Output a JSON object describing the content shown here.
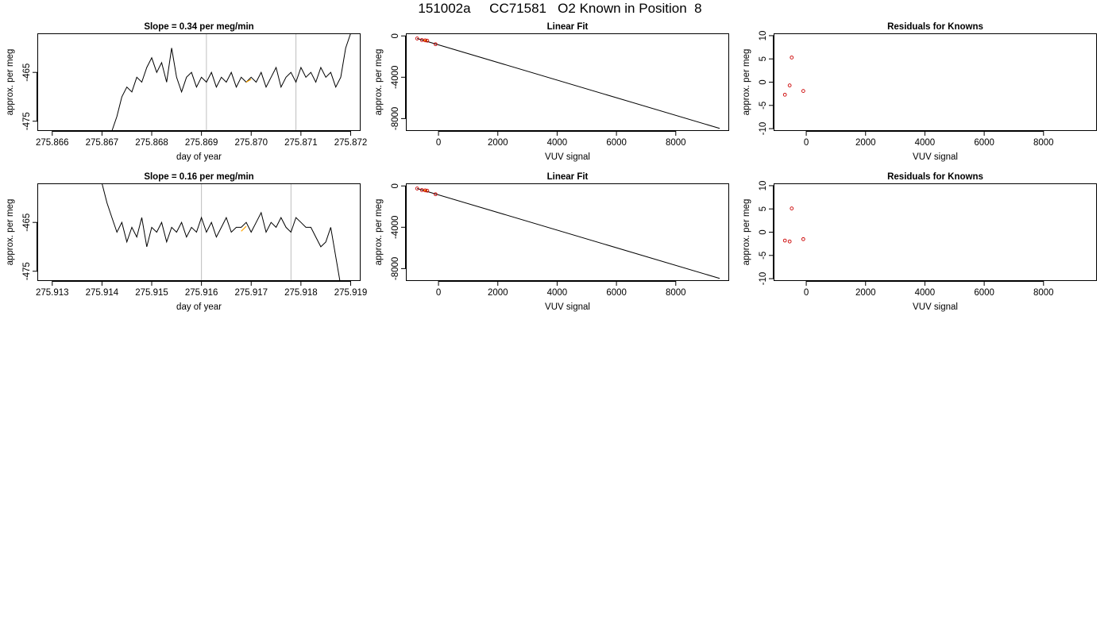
{
  "page": {
    "title": "151002a     CC71581   O2 Known in Position  8"
  },
  "colors": {
    "trace": "#000000",
    "highlight": "#FFA500",
    "points": "#CC0000",
    "gridline": "#BEBEBE",
    "frame": "#000000"
  },
  "chart_data": [
    {
      "type": "line",
      "title": "Slope =  0.34  per meg/min",
      "xlabel": "day of year",
      "ylabel": "approx. per meg",
      "xlim": [
        275.8657,
        275.8722
      ],
      "ylim": [
        -477,
        -457
      ],
      "xticks": [
        "275.866",
        "275.867",
        "275.868",
        "275.869",
        "275.870",
        "275.871",
        "275.872"
      ],
      "yticks": [
        "-465",
        "-475"
      ],
      "vlines": [
        275.8691,
        275.8709
      ],
      "highlight": {
        "x": [
          275.8699,
          275.87
        ],
        "y": [
          -467.0,
          -466.4
        ]
      },
      "series": [
        {
          "x": [
            275.8672,
            275.8673,
            275.8674,
            275.8675,
            275.8676,
            275.8677,
            275.8678,
            275.8679,
            275.868,
            275.8681,
            275.8682,
            275.8683,
            275.8684,
            275.8685,
            275.8686,
            275.8687,
            275.8688,
            275.8689,
            275.869,
            275.8691,
            275.8692,
            275.8693,
            275.8694,
            275.8695,
            275.8696,
            275.8697,
            275.8698,
            275.8699,
            275.87,
            275.8701,
            275.8702,
            275.8703,
            275.8704,
            275.8705,
            275.8706,
            275.8707,
            275.8708,
            275.8709,
            275.871,
            275.8711,
            275.8712,
            275.8713,
            275.8714,
            275.8715,
            275.8716,
            275.8717,
            275.8718,
            275.8719,
            275.872
          ],
          "y": [
            -477,
            -474,
            -470,
            -468,
            -469,
            -466,
            -467,
            -464,
            -462,
            -465,
            -463,
            -467,
            -460,
            -466,
            -469,
            -466,
            -465,
            -468,
            -466,
            -467,
            -465,
            -468,
            -466,
            -467,
            -465,
            -468,
            -466,
            -467,
            -466,
            -467,
            -465,
            -468,
            -466,
            -464,
            -468,
            -466,
            -465,
            -467,
            -464,
            -466,
            -465,
            -467,
            -464,
            -466,
            -465,
            -468,
            -466,
            -460,
            -457
          ]
        }
      ]
    },
    {
      "type": "scatter",
      "title": "Linear Fit",
      "xlabel": "VUV signal",
      "ylabel": "approx. per meg",
      "xlim": [
        -1100,
        9800
      ],
      "ylim": [
        -9200,
        250
      ],
      "xticks": [
        "0",
        "2000",
        "4000",
        "6000",
        "8000"
      ],
      "yticks": [
        "0",
        "-4000",
        "-8000"
      ],
      "fit_line": {
        "x": [
          -720,
          9480
        ],
        "y": [
          -250,
          -8950
        ]
      },
      "points": {
        "x": [
          -720,
          -560,
          -450,
          -380,
          -100
        ],
        "y": [
          -250,
          -400,
          -430,
          -460,
          -800
        ]
      },
      "highlight": {
        "x": [
          -500,
          -380
        ],
        "y": [
          -400,
          -480
        ]
      }
    },
    {
      "type": "scatter",
      "title": "Residuals for Knowns",
      "xlabel": "VUV signal",
      "ylabel": "approx. per meg",
      "xlim": [
        -1100,
        9800
      ],
      "ylim": [
        -10.5,
        10.5
      ],
      "xticks": [
        "0",
        "2000",
        "4000",
        "6000",
        "8000"
      ],
      "yticks": [
        "10",
        "5",
        "0",
        "-5",
        "-10"
      ],
      "points": {
        "x": [
          -720,
          -560,
          -490,
          -100
        ],
        "y": [
          -2.7,
          -0.7,
          5.3,
          -1.9
        ]
      }
    },
    {
      "type": "line",
      "title": "Slope =  0.16  per meg/min",
      "xlabel": "day of year",
      "ylabel": "approx. per meg",
      "xlim": [
        275.9127,
        275.9192
      ],
      "ylim": [
        -477,
        -457
      ],
      "xticks": [
        "275.913",
        "275.914",
        "275.915",
        "275.916",
        "275.917",
        "275.918",
        "275.919"
      ],
      "yticks": [
        "-465",
        "-475"
      ],
      "vlines": [
        275.916,
        275.9178
      ],
      "highlight": {
        "x": [
          275.9168,
          275.9169
        ],
        "y": [
          -466.8,
          -465.8
        ]
      },
      "series": [
        {
          "x": [
            275.914,
            275.9141,
            275.9142,
            275.9143,
            275.9144,
            275.9145,
            275.9146,
            275.9147,
            275.9148,
            275.9149,
            275.915,
            275.9151,
            275.9152,
            275.9153,
            275.9154,
            275.9155,
            275.9156,
            275.9157,
            275.9158,
            275.9159,
            275.916,
            275.9161,
            275.9162,
            275.9163,
            275.9164,
            275.9165,
            275.9166,
            275.9167,
            275.9168,
            275.9169,
            275.917,
            275.9171,
            275.9172,
            275.9173,
            275.9174,
            275.9175,
            275.9176,
            275.9177,
            275.9178,
            275.9179,
            275.918,
            275.9181,
            275.9182,
            275.9183,
            275.9184,
            275.9185,
            275.9186,
            275.9187,
            275.9188
          ],
          "y": [
            -457,
            -461,
            -464,
            -467,
            -465,
            -469,
            -466,
            -468,
            -464,
            -470,
            -466,
            -467,
            -465,
            -469,
            -466,
            -467,
            -465,
            -468,
            -466,
            -467,
            -464,
            -467,
            -465,
            -468,
            -466,
            -464,
            -467,
            -466,
            -466,
            -465,
            -467,
            -465,
            -463,
            -467,
            -465,
            -466,
            -464,
            -466,
            -467,
            -464,
            -465,
            -466,
            -466,
            -468,
            -470,
            -469,
            -466,
            -472,
            -478
          ]
        }
      ]
    },
    {
      "type": "scatter",
      "title": "Linear Fit",
      "xlabel": "VUV signal",
      "ylabel": "approx. per meg",
      "xlim": [
        -1100,
        9800
      ],
      "ylim": [
        -9200,
        250
      ],
      "xticks": [
        "0",
        "2000",
        "4000",
        "6000",
        "8000"
      ],
      "yticks": [
        "0",
        "-4000",
        "-8000"
      ],
      "fit_line": {
        "x": [
          -720,
          9480
        ],
        "y": [
          -250,
          -8950
        ]
      },
      "points": {
        "x": [
          -720,
          -560,
          -450,
          -380,
          -100
        ],
        "y": [
          -250,
          -400,
          -430,
          -460,
          -800
        ]
      },
      "highlight": {
        "x": [
          -500,
          -380
        ],
        "y": [
          -400,
          -480
        ]
      }
    },
    {
      "type": "scatter",
      "title": "Residuals for Knowns",
      "xlabel": "VUV signal",
      "ylabel": "approx. per meg",
      "xlim": [
        -1100,
        9800
      ],
      "ylim": [
        -10.5,
        10.5
      ],
      "xticks": [
        "0",
        "2000",
        "4000",
        "6000",
        "8000"
      ],
      "yticks": [
        "10",
        "5",
        "0",
        "-5",
        "-10"
      ],
      "points": {
        "x": [
          -720,
          -560,
          -490,
          -100
        ],
        "y": [
          -1.8,
          -2.0,
          5.1,
          -1.5
        ]
      }
    }
  ]
}
